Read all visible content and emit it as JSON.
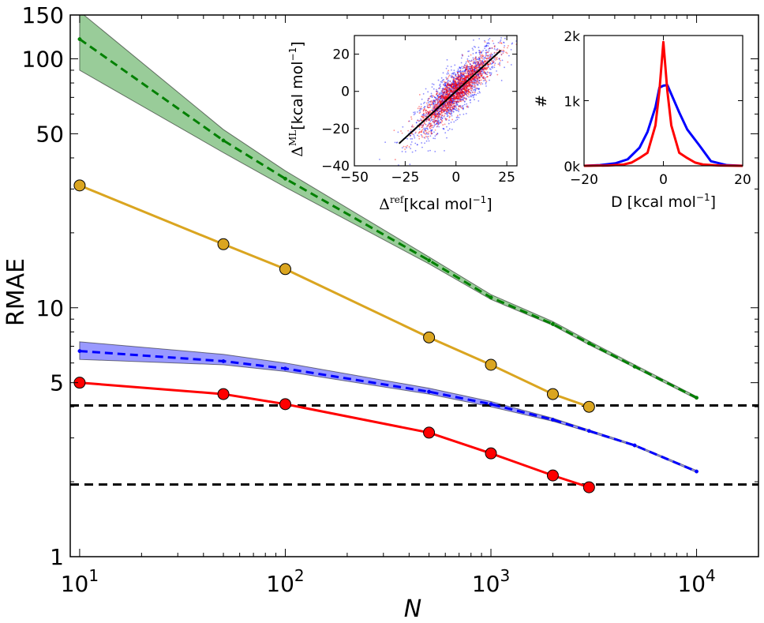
{
  "chart_data": [
    {
      "type": "line",
      "title": "",
      "xlabel": "N",
      "ylabel": "RMAE",
      "xscale": "log",
      "yscale": "log",
      "xlim": [
        9,
        20000
      ],
      "ylim": [
        1,
        150
      ],
      "xticks": [
        {
          "base": "10",
          "exp": "1"
        },
        {
          "base": "10",
          "exp": "2"
        },
        {
          "base": "10",
          "exp": "3"
        },
        {
          "base": "10",
          "exp": "4"
        }
      ],
      "yticks": [
        "1",
        "5",
        "10",
        "50",
        "100",
        "150"
      ],
      "ytick_values": [
        1,
        5,
        10,
        50,
        100,
        150
      ],
      "hlines": [
        4.05,
        1.95
      ],
      "series": [
        {
          "name": "green",
          "color": "#008000",
          "style": "dashed",
          "marker": "small",
          "x": [
            10,
            50,
            100,
            500,
            1000,
            2000,
            3000,
            5000,
            10000
          ],
          "y": [
            120,
            47,
            33,
            15.5,
            11,
            8.6,
            7.2,
            5.8,
            4.35
          ],
          "band_low": [
            90,
            42,
            30.5,
            15.0,
            10.8,
            8.5,
            7.1,
            5.75,
            4.3
          ],
          "band_high": [
            155,
            52,
            35.5,
            16.0,
            11.3,
            8.8,
            7.35,
            5.9,
            4.4
          ]
        },
        {
          "name": "orange",
          "color": "#daa520",
          "style": "solid",
          "marker": "large",
          "x": [
            10,
            50,
            100,
            500,
            1000,
            2000,
            3000
          ],
          "y": [
            31,
            18,
            14.3,
            7.6,
            5.9,
            4.5,
            4.0
          ]
        },
        {
          "name": "blue",
          "color": "#0000ff",
          "style": "dashed",
          "marker": "small",
          "x": [
            10,
            50,
            100,
            500,
            1000,
            2000,
            3000,
            5000,
            10000
          ],
          "y": [
            6.7,
            6.1,
            5.7,
            4.6,
            4.1,
            3.55,
            3.2,
            2.8,
            2.2
          ],
          "band_low": [
            6.2,
            5.9,
            5.55,
            4.5,
            4.0,
            3.5,
            3.17,
            2.78,
            2.18
          ],
          "band_high": [
            7.3,
            6.5,
            6.0,
            4.75,
            4.2,
            3.6,
            3.23,
            2.82,
            2.22
          ]
        },
        {
          "name": "red",
          "color": "#ff0000",
          "style": "solid",
          "marker": "large",
          "x": [
            10,
            50,
            100,
            500,
            1000,
            2000,
            3000
          ],
          "y": [
            5.0,
            4.5,
            4.1,
            3.15,
            2.6,
            2.12,
            1.9
          ]
        }
      ]
    },
    {
      "type": "scatter",
      "title": "",
      "xlabel": {
        "main": "Δ",
        "sup": "ref",
        "unit": "[kcal mol",
        "unit_sup": "−1",
        "close": "]"
      },
      "ylabel": {
        "main": "Δ",
        "sup": "ML",
        "unit": "[kcal mol",
        "unit_sup": "−1",
        "close": "]"
      },
      "xlim": [
        -50,
        30
      ],
      "ylim": [
        -40,
        30
      ],
      "xticks": [
        -50,
        -25,
        0,
        25
      ],
      "yticks": [
        -40,
        -20,
        0,
        20
      ],
      "series": [
        {
          "name": "blue",
          "color": "#0000ff",
          "spread": "wide",
          "count": 1400
        },
        {
          "name": "red",
          "color": "#ff0000",
          "spread": "narrow",
          "count": 1600
        }
      ],
      "identity_line": [
        [
          -28,
          -28
        ],
        [
          22,
          22
        ]
      ]
    },
    {
      "type": "line",
      "title": "",
      "xlabel": {
        "main": "D [kcal mol",
        "unit_sup": "−1",
        "close": "]"
      },
      "ylabel": "#",
      "xlim": [
        -20,
        20
      ],
      "ylim": [
        0,
        2000
      ],
      "xticks": [
        "−20",
        "0",
        "20"
      ],
      "xtick_values": [
        -20,
        0,
        20
      ],
      "yticks": [
        "0k",
        "1k",
        "2k"
      ],
      "ytick_values": [
        0,
        1000,
        2000
      ],
      "series": [
        {
          "name": "blue",
          "color": "#0000ff",
          "x": [
            -20,
            -16,
            -12,
            -9,
            -6,
            -4,
            -2,
            -1,
            0,
            1,
            2,
            4,
            6,
            9,
            12,
            16,
            20
          ],
          "y": [
            0,
            10,
            40,
            100,
            280,
            520,
            900,
            1200,
            1230,
            1240,
            1100,
            820,
            560,
            320,
            70,
            10,
            0
          ]
        },
        {
          "name": "red",
          "color": "#ff0000",
          "x": [
            -20,
            -14,
            -10,
            -8,
            -6,
            -4,
            -2,
            -1,
            0,
            1,
            2,
            4,
            6,
            8,
            10,
            14,
            20
          ],
          "y": [
            0,
            5,
            20,
            50,
            120,
            200,
            620,
            1150,
            1900,
            1150,
            620,
            200,
            120,
            50,
            20,
            5,
            0
          ]
        }
      ]
    }
  ]
}
